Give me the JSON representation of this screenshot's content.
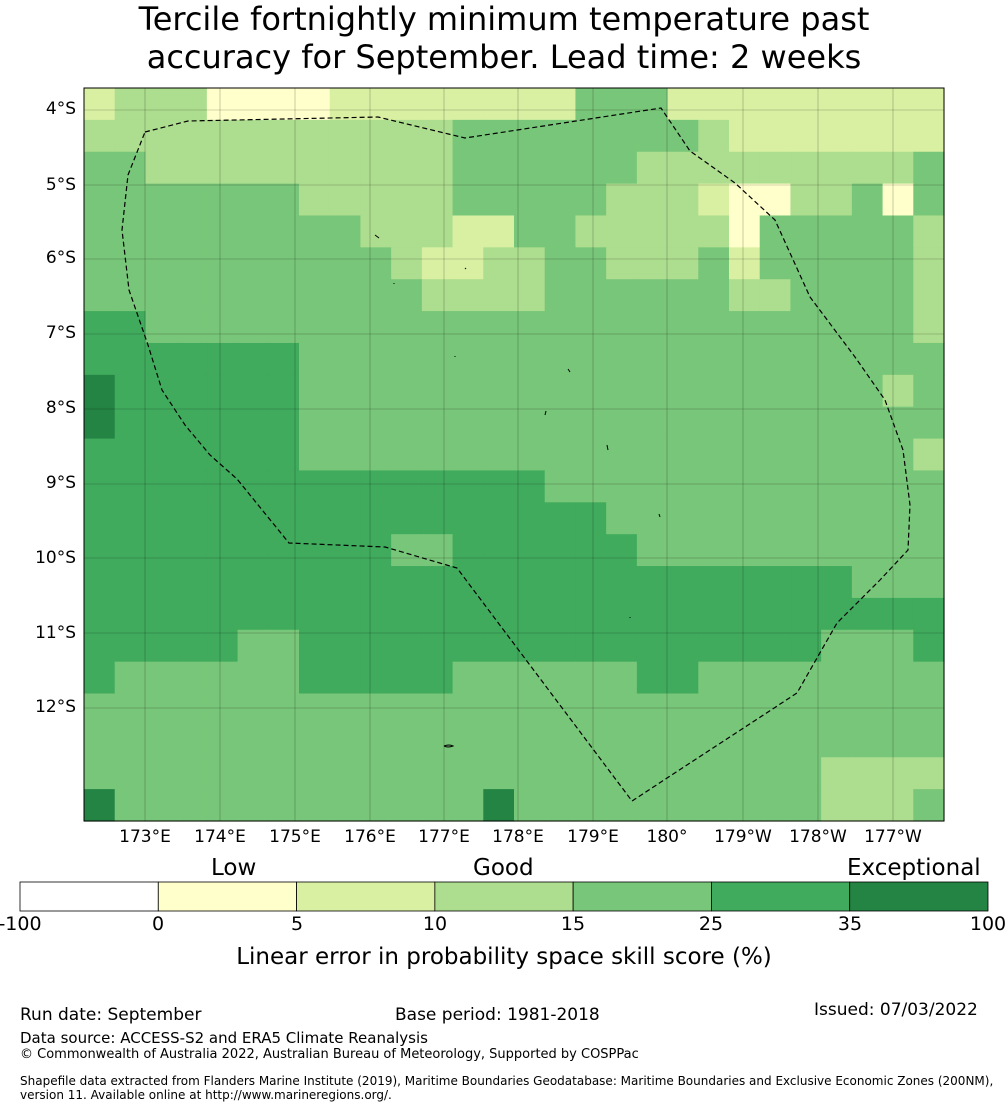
{
  "title_line1": "Tercile fortnightly minimum temperature past",
  "title_line2": "accuracy for September. Lead time: 2 weeks",
  "lat_labels": [
    "4°S",
    "5°S",
    "6°S",
    "7°S",
    "8°S",
    "9°S",
    "10°S",
    "11°S",
    "12°S"
  ],
  "lon_labels": [
    "173°E",
    "174°E",
    "175°E",
    "176°E",
    "177°E",
    "178°E",
    "179°E",
    "180°",
    "179°W",
    "178°W",
    "177°W"
  ],
  "legend": {
    "categories": [
      "Low",
      "Good",
      "Exceptional"
    ],
    "ticks": [
      "-100",
      "0",
      "5",
      "10",
      "15",
      "25",
      "35",
      "100"
    ],
    "colors": [
      "#ffffff",
      "#ffffcc",
      "#d9f0a3",
      "#addd8e",
      "#78c679",
      "#41ab5d",
      "#238443"
    ],
    "title": "Linear error in probability space skill score (%)"
  },
  "grid_levels": [
    "2333111122222222444222222222",
    "3333333333334444444432222222",
    "4433333333334444443333333334",
    "4444444333334444433321133414",
    "4444444443332244333331444443",
    "4444444444322334433342444443",
    "4444444444433334444443344443",
    "5544444444444444444444444443",
    "5555555444444444444444444444",
    "6555555444444444444444444434",
    "6555555444444444444444444444",
    "5555555444444444444444444443",
    "5555555555555554444444444444",
    "5555555555555555544444444444",
    "5555555555445555554444444444",
    "5555555555555555555555555444",
    "5555555555555555555555555555",
    "5555544555555555555555554445",
    "5444444555554444445544444444",
    "4444444444444444444444444444",
    "4444444444444444444444444444",
    "4444444444444444444444443333",
    "6444444444444644444444443334"
  ],
  "footer": {
    "run_date": "Run date: September",
    "base_period": "Base period: 1981-2018",
    "issued": "Issued: 07/03/2022",
    "data_source": "Data source: ACCESS-S2 and ERA5 Climate Reanalysis",
    "copyright": "© Commonwealth of Australia 2022, Australian Bureau of Meteorology, Supported by COSPPac",
    "shapefile_line1": "Shapefile data extracted from Flanders Marine Institute (2019), Maritime Boundaries Geodatabase: Maritime Boundaries and Exclusive Economic Zones (200NM),",
    "shapefile_line2": "version 11. Available online at http://www.marineregions.org/."
  }
}
